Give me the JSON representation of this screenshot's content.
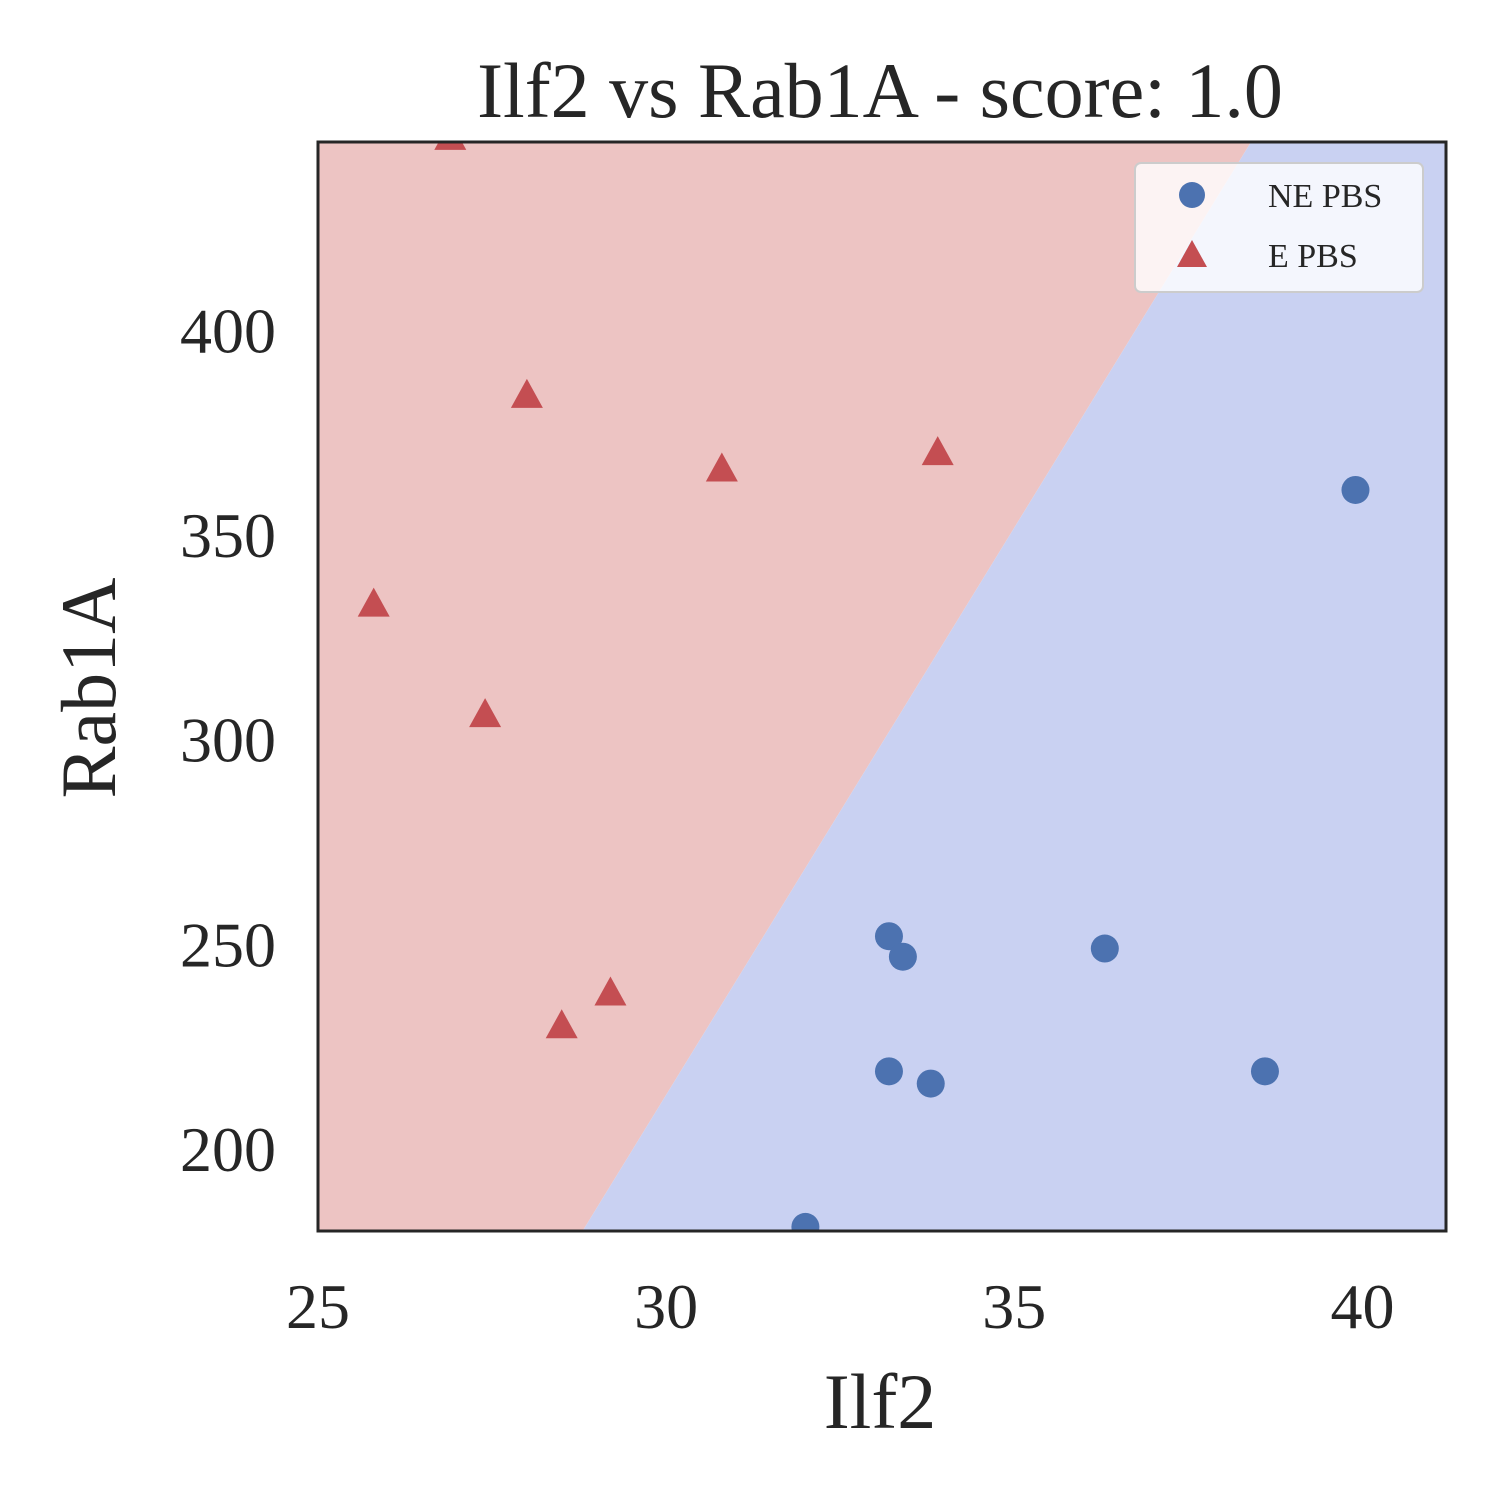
{
  "chart_data": {
    "type": "scatter",
    "title": "Ilf2 vs Rab1A - score: 1.0",
    "xlabel": "Ilf2",
    "ylabel": "Rab1A",
    "xlim": [
      25,
      41.2
    ],
    "ylim": [
      180,
      446
    ],
    "xticks": [
      25,
      30,
      35,
      40
    ],
    "yticks": [
      200,
      250,
      300,
      350,
      400
    ],
    "grid": false,
    "legend_position": "top-right",
    "decision_boundary": {
      "points": [
        [
          28.8,
          180
        ],
        [
          38.4,
          446
        ]
      ],
      "left_region": "E PBS",
      "right_region": "NE PBS",
      "left_color": "#edc4c3",
      "right_color": "#c9d1f2"
    },
    "series": [
      {
        "name": "NE PBS",
        "marker": "circle",
        "color": "#4c72b0",
        "points": [
          [
            32.0,
            181
          ],
          [
            33.2,
            252
          ],
          [
            33.4,
            247
          ],
          [
            36.3,
            249
          ],
          [
            33.2,
            219
          ],
          [
            33.8,
            216
          ],
          [
            38.6,
            219
          ],
          [
            39.9,
            361
          ]
        ]
      },
      {
        "name": "E PBS",
        "marker": "triangle",
        "color": "#c44e52",
        "points": [
          [
            26.9,
            447
          ],
          [
            25.8,
            333
          ],
          [
            28.0,
            384
          ],
          [
            27.4,
            306
          ],
          [
            30.8,
            366
          ],
          [
            33.9,
            370
          ],
          [
            28.5,
            230
          ],
          [
            29.2,
            238
          ]
        ]
      }
    ]
  }
}
